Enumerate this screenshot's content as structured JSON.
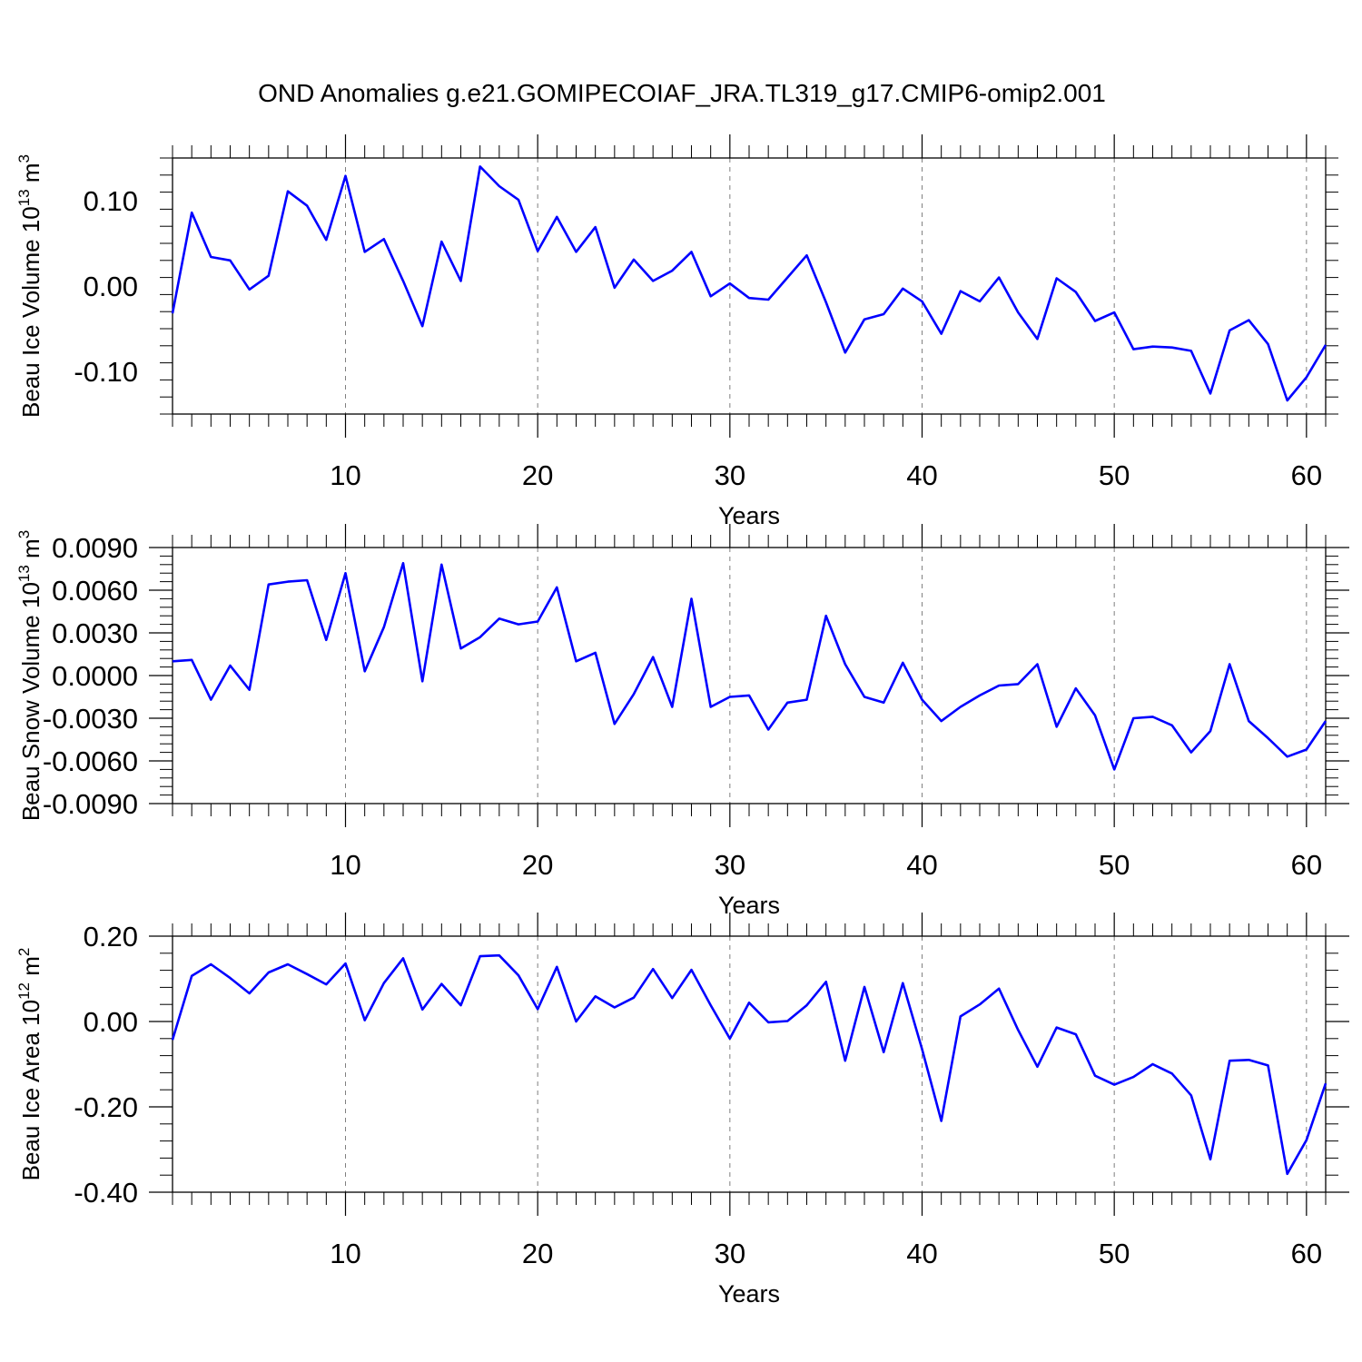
{
  "title": "OND Anomalies g.e21.GOMIPECOIAF_JRA.TL319_g17.CMIP6-omip2.001",
  "colors": {
    "line": "#0000ff",
    "axis": "#000000",
    "grid": "#808080",
    "background": "#ffffff"
  },
  "chart_data": [
    {
      "type": "line",
      "ylabel": "Beau Ice Volume 10",
      "ylabel_exponent": "13",
      "ylabel_unit": " m",
      "ylabel_unit_exponent": "3",
      "xlabel": "Years",
      "xlim": [
        1,
        61
      ],
      "ylim": [
        -0.15,
        0.15
      ],
      "xticks": [
        "10",
        "20",
        "30",
        "40",
        "50",
        "60"
      ],
      "yticks": [
        "0.10",
        "0.00",
        "-0.10"
      ],
      "ytick_values": [
        0.1,
        0.0,
        -0.1
      ],
      "grid": "vertical dashed at major x ticks",
      "series": [
        {
          "x": [
            1,
            2,
            3,
            4,
            5,
            6,
            7,
            8,
            9,
            10,
            11,
            12,
            13,
            14,
            15,
            16,
            17,
            18,
            19,
            20,
            21,
            22,
            23,
            24,
            25,
            26,
            27,
            28,
            29,
            30,
            31,
            32,
            33,
            34,
            35,
            36,
            37,
            38,
            39,
            40,
            41,
            42,
            43,
            44,
            45,
            46,
            47,
            48,
            49,
            50,
            51,
            52,
            53,
            54,
            55,
            56,
            57,
            58,
            59,
            60,
            61
          ],
          "values": [
            -0.032,
            0.086,
            0.034,
            0.03,
            -0.004,
            0.012,
            0.111,
            0.094,
            0.054,
            0.129,
            0.04,
            0.055,
            0.006,
            -0.047,
            0.052,
            0.006,
            0.14,
            0.117,
            0.101,
            0.041,
            0.081,
            0.04,
            0.069,
            -0.002,
            0.031,
            0.006,
            0.018,
            0.04,
            -0.012,
            0.003,
            -0.014,
            -0.016,
            0.01,
            0.036,
            -0.019,
            -0.078,
            -0.039,
            -0.033,
            -0.003,
            -0.018,
            -0.056,
            -0.006,
            -0.018,
            0.01,
            -0.031,
            -0.062,
            0.009,
            -0.007,
            -0.041,
            -0.031,
            -0.074,
            -0.071,
            -0.072,
            -0.076,
            -0.126,
            -0.052,
            -0.04,
            -0.068,
            -0.134,
            -0.107,
            -0.069
          ]
        }
      ]
    },
    {
      "type": "line",
      "ylabel": "Beau Snow Volume 10",
      "ylabel_exponent": "13",
      "ylabel_unit": " m",
      "ylabel_unit_exponent": "3",
      "xlabel": "Years",
      "xlim": [
        1,
        61
      ],
      "ylim": [
        -0.009,
        0.009
      ],
      "xticks": [
        "10",
        "20",
        "30",
        "40",
        "50",
        "60"
      ],
      "yticks": [
        "0.0090",
        "0.0060",
        "0.0030",
        "0.0000",
        "-0.0030",
        "-0.0060",
        "-0.0090"
      ],
      "ytick_values": [
        0.009,
        0.006,
        0.003,
        0.0,
        -0.003,
        -0.006,
        -0.009
      ],
      "grid": "vertical dashed at major x ticks",
      "series": [
        {
          "x": [
            1,
            2,
            3,
            4,
            5,
            6,
            7,
            8,
            9,
            10,
            11,
            12,
            13,
            14,
            15,
            16,
            17,
            18,
            19,
            20,
            21,
            22,
            23,
            24,
            25,
            26,
            27,
            28,
            29,
            30,
            31,
            32,
            33,
            34,
            35,
            36,
            37,
            38,
            39,
            40,
            41,
            42,
            43,
            44,
            45,
            46,
            47,
            48,
            49,
            50,
            51,
            52,
            53,
            54,
            55,
            56,
            57,
            58,
            59,
            60,
            61
          ],
          "values": [
            0.001,
            0.0011,
            -0.0017,
            0.0007,
            -0.001,
            0.0064,
            0.0066,
            0.0067,
            0.0025,
            0.0072,
            0.0003,
            0.0034,
            0.0079,
            -0.0004,
            0.0078,
            0.0019,
            0.0027,
            0.004,
            0.0036,
            0.0038,
            0.0062,
            0.001,
            0.0016,
            -0.0034,
            -0.0013,
            0.0013,
            -0.0022,
            0.0054,
            -0.0022,
            -0.0015,
            -0.0014,
            -0.0038,
            -0.0019,
            -0.0017,
            0.0042,
            0.0008,
            -0.0015,
            -0.0019,
            0.0009,
            -0.0017,
            -0.0032,
            -0.0022,
            -0.0014,
            -0.0007,
            -0.0006,
            0.0008,
            -0.0036,
            -0.0009,
            -0.0028,
            -0.0066,
            -0.003,
            -0.0029,
            -0.0035,
            -0.0054,
            -0.0039,
            0.0008,
            -0.0032,
            -0.0044,
            -0.0057,
            -0.0052,
            -0.0032
          ]
        }
      ]
    },
    {
      "type": "line",
      "ylabel": "Beau Ice Area 10",
      "ylabel_exponent": "12",
      "ylabel_unit": " m",
      "ylabel_unit_exponent": "2",
      "xlabel": "Years",
      "xlim": [
        1,
        61
      ],
      "ylim": [
        -0.4,
        0.2
      ],
      "xticks": [
        "10",
        "20",
        "30",
        "40",
        "50",
        "60"
      ],
      "yticks": [
        "0.20",
        "0.00",
        "-0.20",
        "-0.40"
      ],
      "ytick_values": [
        0.2,
        0.0,
        -0.2,
        -0.4
      ],
      "grid": "vertical dashed at major x ticks",
      "series": [
        {
          "x": [
            1,
            2,
            3,
            4,
            5,
            6,
            7,
            8,
            9,
            10,
            11,
            12,
            13,
            14,
            15,
            16,
            17,
            18,
            19,
            20,
            21,
            22,
            23,
            24,
            25,
            26,
            27,
            28,
            29,
            30,
            31,
            32,
            33,
            34,
            35,
            36,
            37,
            38,
            39,
            40,
            41,
            42,
            43,
            44,
            45,
            46,
            47,
            48,
            49,
            50,
            51,
            52,
            53,
            54,
            55,
            56,
            57,
            58,
            59,
            60,
            61
          ],
          "values": [
            -0.043,
            0.107,
            0.134,
            0.102,
            0.066,
            0.115,
            0.134,
            0.111,
            0.087,
            0.136,
            0.003,
            0.09,
            0.148,
            0.028,
            0.088,
            0.038,
            0.153,
            0.155,
            0.108,
            0.029,
            0.128,
            0.0,
            0.059,
            0.033,
            0.056,
            0.123,
            0.055,
            0.121,
            0.038,
            -0.04,
            0.044,
            -0.002,
            0.001,
            0.038,
            0.093,
            -0.092,
            0.081,
            -0.072,
            0.09,
            -0.065,
            -0.233,
            0.012,
            0.04,
            0.077,
            -0.02,
            -0.106,
            -0.014,
            -0.03,
            -0.127,
            -0.148,
            -0.13,
            -0.1,
            -0.122,
            -0.173,
            -0.323,
            -0.092,
            -0.09,
            -0.103,
            -0.357,
            -0.278,
            -0.145
          ]
        }
      ]
    }
  ]
}
